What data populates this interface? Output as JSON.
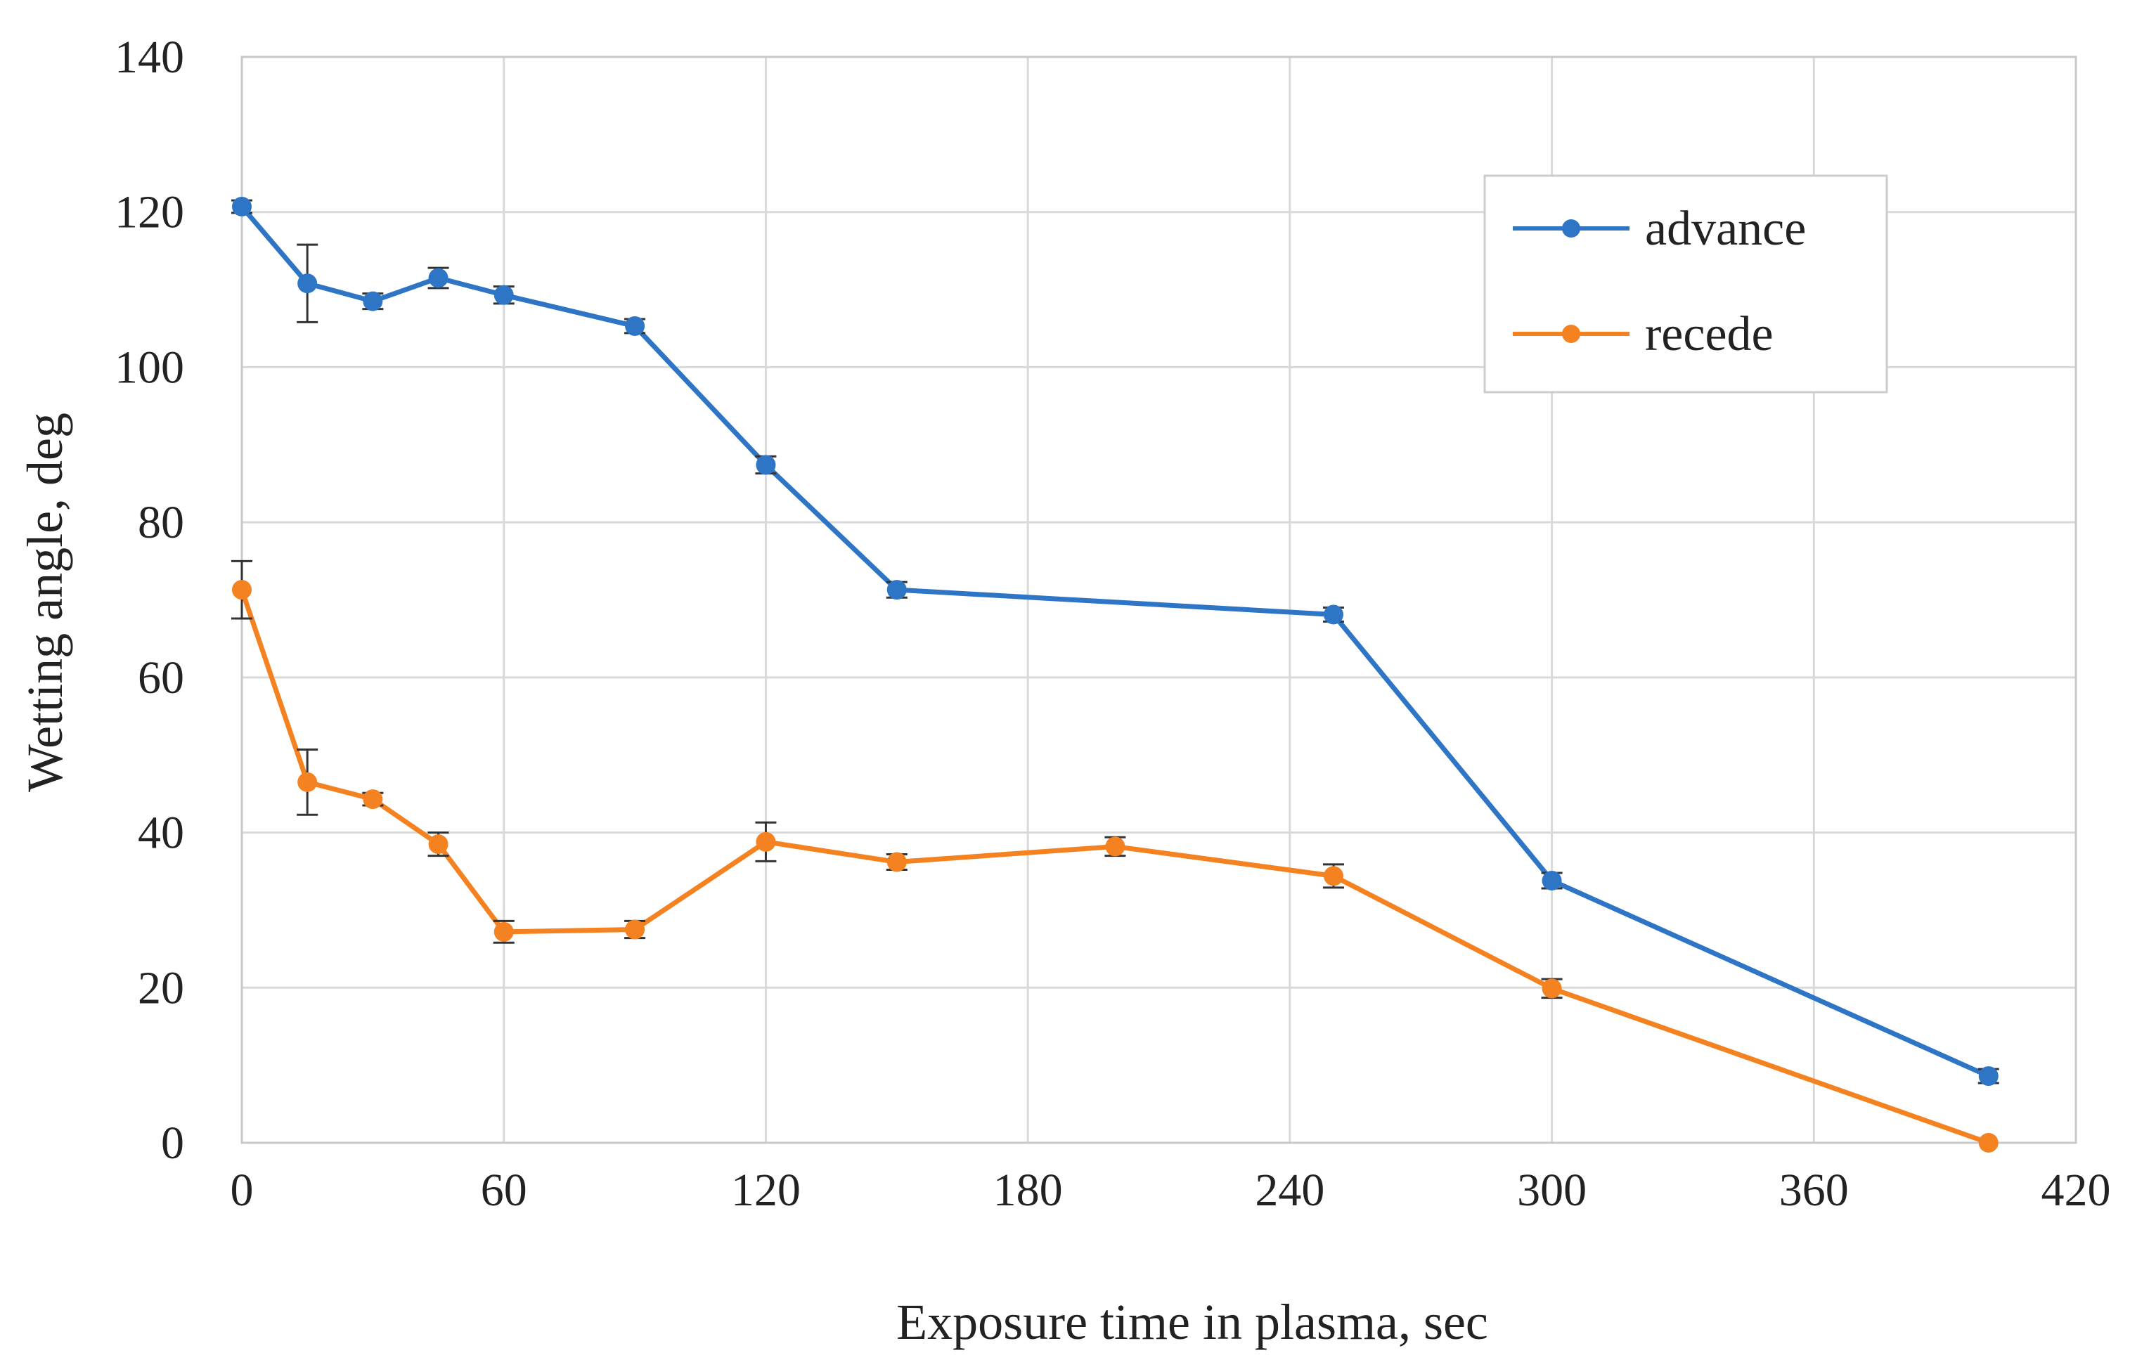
{
  "chart_data": {
    "type": "line",
    "title": "",
    "xlabel": "Exposure time in plasma, sec",
    "ylabel": "Wetting angle, deg",
    "xlim": [
      0,
      420
    ],
    "ylim": [
      0,
      140
    ],
    "xticks": [
      0,
      60,
      120,
      180,
      240,
      300,
      360,
      420
    ],
    "yticks": [
      0,
      20,
      40,
      60,
      80,
      100,
      120,
      140
    ],
    "grid": true,
    "legend_position": "top-right",
    "series": [
      {
        "name": "advance",
        "color": "#2e75c6",
        "x": [
          0,
          15,
          30,
          45,
          60,
          90,
          120,
          150,
          250,
          300,
          400
        ],
        "y": [
          120.7,
          110.8,
          108.5,
          111.5,
          109.3,
          105.3,
          87.4,
          71.3,
          68.1,
          33.8,
          8.6
        ],
        "err": [
          0.8,
          5.0,
          1.0,
          1.3,
          1.1,
          0.9,
          1.1,
          1.0,
          0.9,
          1.0,
          0.9
        ]
      },
      {
        "name": "recede",
        "color": "#f58220",
        "x": [
          0,
          15,
          30,
          45,
          60,
          90,
          120,
          150,
          200,
          250,
          300,
          400
        ],
        "y": [
          71.3,
          46.5,
          44.3,
          38.5,
          27.2,
          27.5,
          38.8,
          36.2,
          38.2,
          34.4,
          19.9,
          0
        ],
        "err": [
          3.7,
          4.2,
          0.8,
          1.5,
          1.4,
          1.1,
          2.5,
          1.0,
          1.2,
          1.5,
          1.2,
          0.0
        ]
      }
    ]
  }
}
